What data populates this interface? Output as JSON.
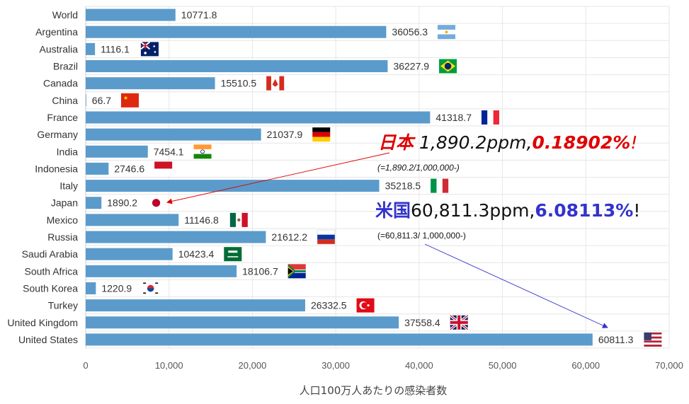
{
  "chart_data": {
    "type": "bar",
    "orientation": "horizontal",
    "categories": [
      "World",
      "Argentina",
      "Australia",
      "Brazil",
      "Canada",
      "China",
      "France",
      "Germany",
      "India",
      "Indonesia",
      "Italy",
      "Japan",
      "Mexico",
      "Russia",
      "Saudi Arabia",
      "South Africa",
      "South Korea",
      "Turkey",
      "United Kingdom",
      "United States"
    ],
    "values": [
      10771.8,
      36056.3,
      1116.1,
      36227.9,
      15510.5,
      66.7,
      41318.7,
      21037.9,
      7454.1,
      2746.6,
      35218.5,
      1890.2,
      11146.8,
      21612.2,
      10423.4,
      18106.7,
      1220.9,
      26332.5,
      37558.4,
      60811.3
    ],
    "value_labels": [
      "10771.8",
      "36056.3",
      "1116.1",
      "36227.9",
      "15510.5",
      "66.7",
      "41318.7",
      "21037.9",
      "7454.1",
      "2746.6",
      "35218.5",
      "1890.2",
      "11146.8",
      "21612.2",
      "10423.4",
      "18106.7",
      "1220.9",
      "26332.5",
      "37558.4",
      "60811.3"
    ],
    "xlabel": "人口100万人あたりの感染者数",
    "ylabel": "",
    "xlim": [
      0,
      70000
    ],
    "x_ticks": [
      0,
      10000,
      20000,
      30000,
      40000,
      50000,
      60000,
      70000
    ],
    "x_tick_labels": [
      "0",
      "10,000",
      "20,000",
      "30,000",
      "40,000",
      "50,000",
      "60,000",
      "70,000"
    ],
    "grid": true,
    "bar_color": "#5b9bcb",
    "flag_icons": [
      "",
      "argentina-flag",
      "australia-flag",
      "brazil-flag",
      "canada-flag",
      "china-flag",
      "france-flag",
      "germany-flag",
      "india-flag",
      "indonesia-flag",
      "italy-flag",
      "japan-flag",
      "mexico-flag",
      "russia-flag",
      "saudi-arabia-flag",
      "south-africa-flag",
      "south-korea-flag",
      "turkey-flag",
      "uk-flag",
      "usa-flag"
    ],
    "annotations": {
      "japan": {
        "country": "日本",
        "ppm": " 1,890.2ppm,",
        "percent": "0.18902%",
        "bang": "!",
        "formula": "(=1,890.2/1,000,000-)",
        "arrow_color": "#e00000"
      },
      "usa": {
        "country": "米国",
        "ppm": "60,811.3ppm,",
        "percent": "6.08113%",
        "bang": "!",
        "formula": "(=60,811.3/ 1,000,000-)",
        "arrow_color": "#3333cc"
      }
    }
  }
}
